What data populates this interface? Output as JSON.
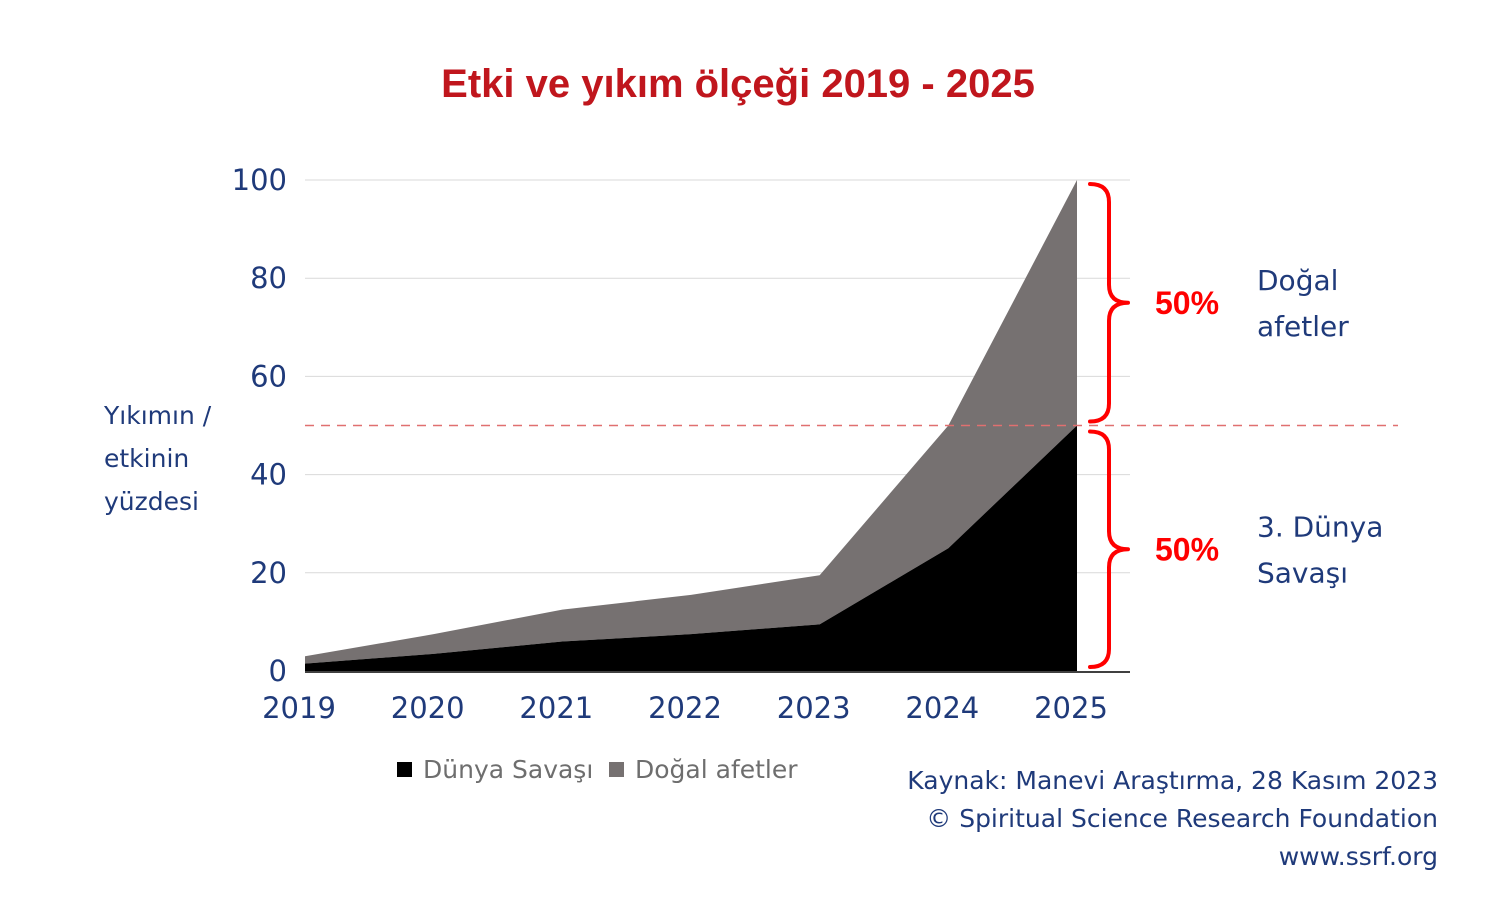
{
  "colors": {
    "title": "#c0161d",
    "axis_text": "#1f3a7a",
    "war": "#000000",
    "disasters": "#767171",
    "grid": "#d9d9d9",
    "brace": "#ff0000",
    "dashed_line": "#e07070",
    "source_text": "#1f3a7a",
    "legend_text": "#6e6e6e"
  },
  "chart_data": {
    "type": "area",
    "stacked": true,
    "title": "Etki ve yıkım ölçeği 2019 - 2025",
    "ylabel": [
      "Yıkımın /",
      "etkinin",
      "yüzdesi"
    ],
    "x": [
      "2019",
      "2020",
      "2021",
      "2022",
      "2023",
      "2024",
      "2025"
    ],
    "ylim": [
      0,
      100
    ],
    "yticks": [
      "0",
      "20",
      "40",
      "60",
      "80",
      "100"
    ],
    "series": [
      {
        "name": "Dünya Savaşı",
        "values": [
          1.5,
          3.5,
          6,
          7.5,
          9.5,
          25,
          50
        ]
      },
      {
        "name": "Doğal afetler",
        "values": [
          1.5,
          4,
          6.5,
          8,
          10,
          25,
          50
        ]
      }
    ],
    "grid": true,
    "legend_position": "bottom",
    "threshold_line": 50,
    "annotations": [
      {
        "percent": "50%",
        "label_lines": [
          "Doğal",
          "afetler"
        ],
        "range": [
          50,
          100
        ]
      },
      {
        "percent": "50%",
        "label_lines": [
          "3. Dünya",
          "Savaşı"
        ],
        "range": [
          0,
          50
        ]
      }
    ]
  },
  "source": {
    "line1": "Kaynak: Manevi Araştırma, 28 Kasım 2023",
    "line2": "© Spiritual Science Research Foundation",
    "line3": "www.ssrf.org"
  }
}
